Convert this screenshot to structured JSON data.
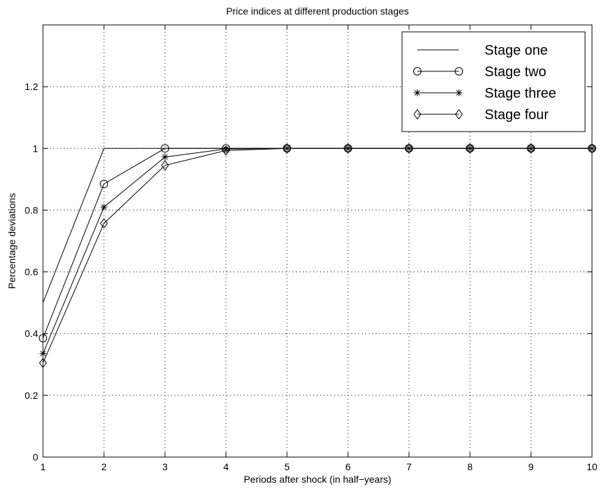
{
  "chart_data": {
    "type": "line",
    "title": "Price indices at different production stages",
    "xlabel": "Periods after shock (in half−years)",
    "ylabel": "Percentage deviations",
    "xlim": [
      1,
      10
    ],
    "ylim": [
      0,
      1.4
    ],
    "xticks": [
      "1",
      "2",
      "3",
      "4",
      "5",
      "6",
      "7",
      "8",
      "9",
      "10"
    ],
    "yticks": [
      "0",
      "0.2",
      "0.4",
      "0.6",
      "0.8",
      "1",
      "1.2"
    ],
    "grid": true,
    "legend_position": "top-right",
    "x": [
      1,
      2,
      3,
      4,
      5,
      6,
      7,
      8,
      9,
      10
    ],
    "series": [
      {
        "name": "Stage one",
        "marker": "none",
        "values": [
          0.5,
          1,
          1,
          1,
          1,
          1,
          1,
          1,
          1,
          1
        ]
      },
      {
        "name": "Stage two",
        "marker": "circle",
        "values": [
          0.385,
          0.885,
          1,
          1,
          1,
          1,
          1,
          1,
          1,
          1
        ]
      },
      {
        "name": "Stage three",
        "marker": "star",
        "values": [
          0.335,
          0.81,
          0.972,
          0.998,
          1,
          1,
          1,
          1,
          1,
          1
        ]
      },
      {
        "name": "Stage four",
        "marker": "diamond",
        "values": [
          0.305,
          0.757,
          0.945,
          0.993,
          1,
          1,
          1,
          1,
          1,
          1
        ]
      }
    ],
    "colors": {
      "line": "#000000",
      "grid": "#000000",
      "background": "#ffffff"
    }
  }
}
